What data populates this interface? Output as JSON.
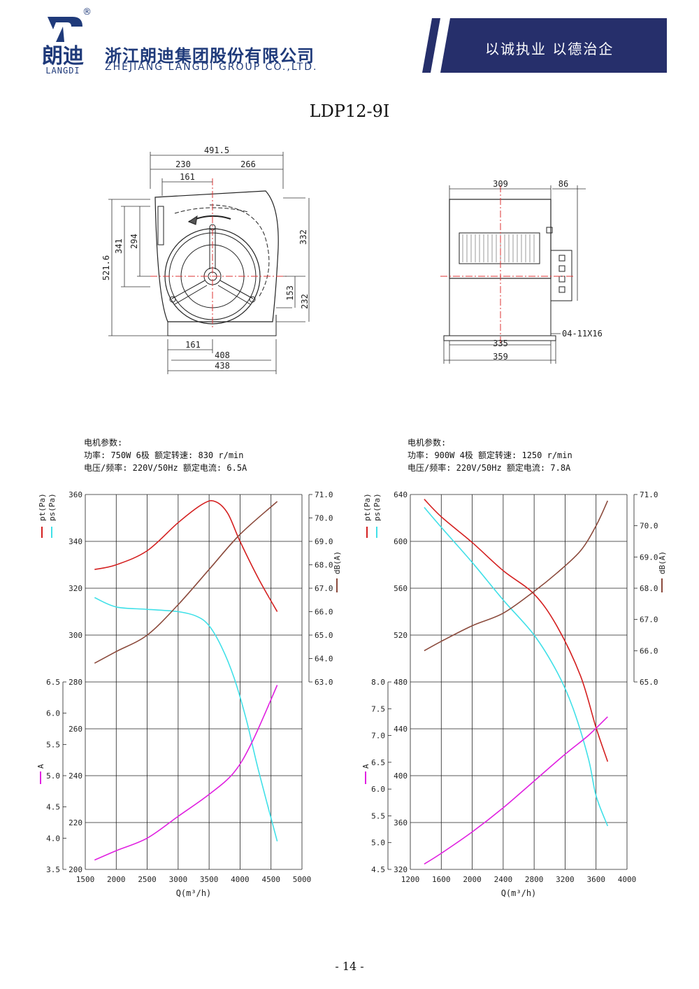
{
  "header": {
    "logo_cn": "朗迪",
    "logo_en": "LANGDI",
    "registered": "®",
    "company_cn": "浙江朗迪集团股份有限公司",
    "company_en": "ZHEJIANG LANGDI GROUP CO.,LTD.",
    "slogan": "以诚执业 以德治企",
    "colors": {
      "brand": "#1f3a7a",
      "banner": "#262f6b"
    }
  },
  "model": "LDP12-9I",
  "drawing": {
    "front": {
      "dims": [
        "491.5",
        "230",
        "266",
        "161",
        "521.6",
        "341",
        "294",
        "332",
        "153",
        "232",
        "161",
        "408",
        "438"
      ]
    },
    "side": {
      "dims": [
        "309",
        "86",
        "335",
        "359"
      ],
      "hole_note": "04-11X16"
    }
  },
  "charts": [
    {
      "motor": {
        "heading": "电机参数:",
        "line1": "功率: 750W 6极 额定转速: 830 r/min",
        "line2": "电压/频率: 220V/50Hz 额定电流: 6.5A"
      }
    },
    {
      "motor": {
        "heading": "电机参数:",
        "line1": "功率: 900W 4极 额定转速: 1250 r/min",
        "line2": "电压/频率: 220V/50Hz 额定电流: 7.8A"
      }
    }
  ],
  "chart_data": [
    {
      "type": "line",
      "xlabel": "Q(m³/h)",
      "xlim": [
        1500,
        5000
      ],
      "xticks": [
        "1500",
        "2000",
        "2500",
        "3000",
        "3500",
        "4000",
        "4500",
        "5000"
      ],
      "left_pressure_axis": {
        "label_pt": "pt(Pa)",
        "label_ps": "ps(Pa)",
        "range": [
          200,
          360
        ],
        "ticks": [
          "200",
          "220",
          "240",
          "260",
          "280",
          "300",
          "320",
          "340",
          "360"
        ]
      },
      "left_current_axis": {
        "label": "A",
        "range": [
          3.5,
          6.5
        ],
        "ticks": [
          "3.5",
          "4.0",
          "4.5",
          "5.0",
          "5.5",
          "6.0",
          "6.5"
        ]
      },
      "right_noise_axis": {
        "label": "dB(A)",
        "range": [
          63.0,
          71.0
        ],
        "ticks": [
          "63.0",
          "64.0",
          "65.0",
          "66.0",
          "67.0",
          "68.0",
          "69.0",
          "70.0",
          "71.0"
        ]
      },
      "series": [
        {
          "name": "pt(Pa)",
          "color": "#d42020",
          "axis": "pressure",
          "x": [
            1650,
            2000,
            2500,
            3000,
            3400,
            3600,
            3800,
            4000,
            4300,
            4600
          ],
          "y": [
            328,
            330,
            336,
            348,
            356,
            357,
            352,
            340,
            324,
            310
          ]
        },
        {
          "name": "ps(Pa)",
          "color": "#40e0e8",
          "axis": "pressure",
          "x": [
            1650,
            2000,
            2500,
            3000,
            3300,
            3500,
            3700,
            3900,
            4100,
            4300,
            4600
          ],
          "y": [
            316,
            312,
            311,
            310,
            308,
            304,
            295,
            282,
            264,
            242,
            212
          ]
        },
        {
          "name": "dB(A)",
          "color": "#8b4a3c",
          "axis": "noise",
          "x": [
            1650,
            2000,
            2500,
            3000,
            3500,
            4000,
            4600
          ],
          "y": [
            63.8,
            64.3,
            65.0,
            66.3,
            67.8,
            69.3,
            70.7
          ]
        },
        {
          "name": "A",
          "color": "#e020e0",
          "axis": "current",
          "x": [
            1650,
            2000,
            2500,
            3000,
            3500,
            3900,
            4200,
            4600
          ],
          "y": [
            3.65,
            3.8,
            4.0,
            4.35,
            4.7,
            5.05,
            5.55,
            6.45
          ]
        }
      ]
    },
    {
      "type": "line",
      "xlabel": "Q(m³/h)",
      "xlim": [
        1200,
        4000
      ],
      "xticks": [
        "1200",
        "1600",
        "2000",
        "2400",
        "2800",
        "3200",
        "3600",
        "4000"
      ],
      "left_pressure_axis": {
        "label_pt": "pt(Pa)",
        "label_ps": "ps(Pa)",
        "range": [
          320,
          640
        ],
        "ticks": [
          "320",
          "360",
          "400",
          "440",
          "480",
          "520",
          "560",
          "600",
          "640"
        ]
      },
      "left_current_axis": {
        "label": "A",
        "range": [
          4.5,
          8.0
        ],
        "ticks": [
          "4.5",
          "5.0",
          "5.5",
          "6.0",
          "6.5",
          "7.0",
          "7.5",
          "8.0"
        ]
      },
      "right_noise_axis": {
        "label": "dB(A)",
        "range": [
          65.0,
          71.0
        ],
        "ticks": [
          "65.0",
          "66.0",
          "67.0",
          "68.0",
          "69.0",
          "70.0",
          "71.0"
        ]
      },
      "series": [
        {
          "name": "pt(Pa)",
          "color": "#d42020",
          "axis": "pressure",
          "x": [
            1380,
            1600,
            2000,
            2400,
            2800,
            3100,
            3400,
            3600,
            3750
          ],
          "y": [
            636,
            621,
            599,
            575,
            555,
            527,
            485,
            441,
            412
          ]
        },
        {
          "name": "ps(Pa)",
          "color": "#40e0e8",
          "axis": "pressure",
          "x": [
            1380,
            1600,
            2000,
            2400,
            2800,
            3100,
            3300,
            3500,
            3600,
            3750
          ],
          "y": [
            629,
            612,
            582,
            550,
            520,
            488,
            458,
            415,
            383,
            357
          ]
        },
        {
          "name": "dB(A)",
          "color": "#8b4a3c",
          "axis": "noise",
          "x": [
            1380,
            1600,
            2000,
            2400,
            2800,
            3100,
            3400,
            3600,
            3750
          ],
          "y": [
            66.0,
            66.3,
            66.8,
            67.2,
            67.9,
            68.5,
            69.2,
            70.0,
            70.8
          ]
        },
        {
          "name": "A",
          "color": "#e020e0",
          "axis": "current",
          "x": [
            1380,
            1600,
            2000,
            2400,
            2800,
            3200,
            3500,
            3750
          ],
          "y": [
            4.6,
            4.8,
            5.2,
            5.65,
            6.15,
            6.65,
            7.0,
            7.35
          ]
        }
      ]
    }
  ],
  "page": "- 14 -"
}
